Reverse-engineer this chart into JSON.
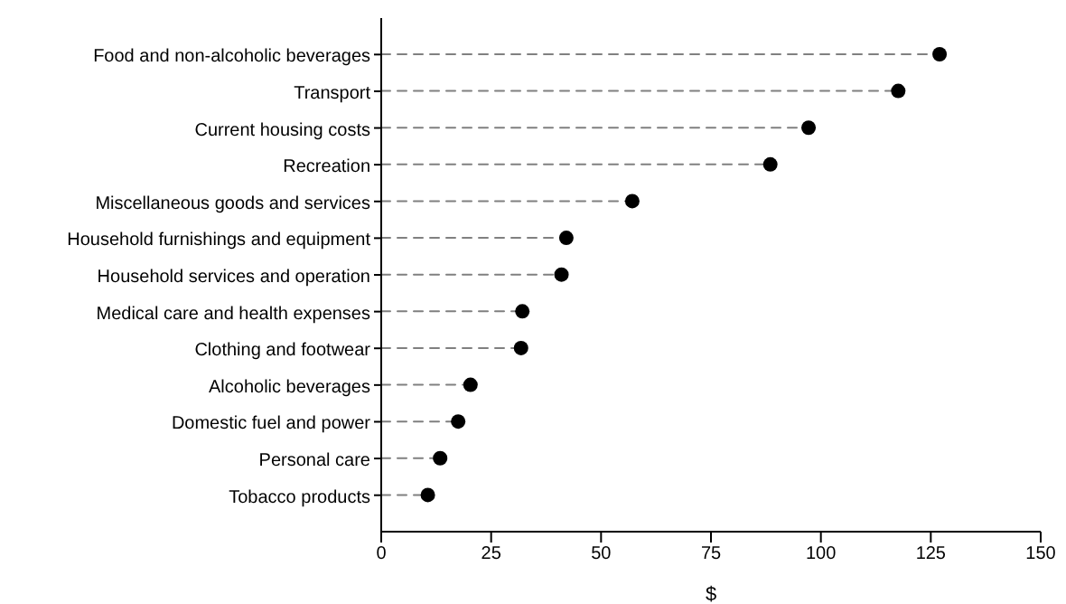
{
  "chart_data": {
    "type": "lollipop",
    "categories": [
      "Food and non-alcoholic beverages",
      "Transport",
      "Current housing costs",
      "Recreation",
      "Miscellaneous goods and services",
      "Household furnishings and equipment",
      "Household services and operation",
      "Medical care and health expenses",
      "Clothing and footwear",
      "Alcoholic beverages",
      "Domestic fuel and power",
      "Personal care",
      "Tobacco products"
    ],
    "orientation": "horizontal",
    "series": [
      {
        "color": "#000000",
        "values": [
          127.0,
          117.6,
          97.2,
          88.5,
          57.1,
          42.1,
          41.0,
          32.1,
          31.8,
          20.3,
          17.5,
          13.4,
          10.6
        ]
      }
    ],
    "xlim": [
      0,
      150
    ],
    "xticks": [
      0,
      25,
      50,
      75,
      100,
      125,
      150
    ],
    "xlabel": "$",
    "marker": "circle",
    "line_style": "dashed"
  }
}
